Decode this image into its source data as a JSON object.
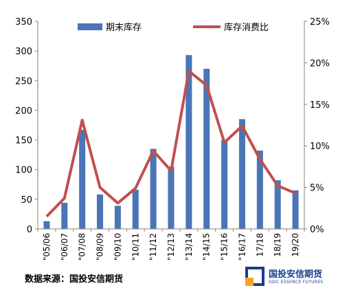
{
  "chart_data": {
    "type": "bar+line",
    "categories": [
      "\"05/06",
      "\"06/07",
      "\"07/08",
      "\"08/09",
      "\"09/10",
      "\"10/11",
      "\"11/12",
      "\"12/13",
      "\"13/14",
      "\"14/15",
      "\"15/16",
      "\"16/17",
      "17/18",
      "18/19",
      "19/20"
    ],
    "series": [
      {
        "name": "期末库存",
        "type": "bar",
        "axis": "left",
        "color": "#4a76b8",
        "values": [
          13,
          44,
          167,
          58,
          39,
          66,
          135,
          105,
          293,
          270,
          150,
          185,
          132,
          82,
          65
        ]
      },
      {
        "name": "库存消费比",
        "type": "line",
        "axis": "right",
        "color": "#c0504d",
        "values": [
          1.5,
          3.7,
          13.1,
          5.0,
          3.1,
          4.9,
          9.4,
          7.0,
          19.0,
          17.3,
          10.4,
          12.4,
          8.4,
          5.2,
          4.3
        ]
      }
    ],
    "y_left": {
      "min": 0,
      "max": 350,
      "ticks": [
        0,
        50,
        100,
        150,
        200,
        250,
        300,
        350
      ]
    },
    "y_right": {
      "min": 0,
      "max": 25,
      "ticks": [
        "0%",
        "5%",
        "10%",
        "15%",
        "20%",
        "25%"
      ]
    },
    "legend_position": "top-center",
    "grid": false
  },
  "footer": {
    "source": "数据来源：国投安信期货"
  },
  "logo": {
    "name_cn": "国投安信期货",
    "name_en": "SDIC ESSENCE FUTURES",
    "color": "#1a3e8c",
    "accent": "#f5a623"
  }
}
